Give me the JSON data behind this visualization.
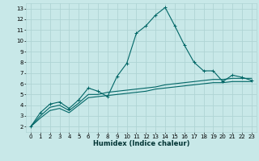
{
  "xlabel": "Humidex (Indice chaleur)",
  "ylabel": "",
  "background_color": "#c8e8e8",
  "grid_color": "#afd4d4",
  "line_color": "#006666",
  "xlim": [
    -0.5,
    23.5
  ],
  "ylim": [
    1.5,
    13.5
  ],
  "xticks": [
    0,
    1,
    2,
    3,
    4,
    5,
    6,
    7,
    8,
    9,
    10,
    11,
    12,
    13,
    14,
    15,
    16,
    17,
    18,
    19,
    20,
    21,
    22,
    23
  ],
  "yticks": [
    2,
    3,
    4,
    5,
    6,
    7,
    8,
    9,
    10,
    11,
    12,
    13
  ],
  "series1_x": [
    0,
    1,
    2,
    3,
    4,
    5,
    6,
    7,
    8,
    9,
    10,
    11,
    12,
    13,
    14,
    15,
    16,
    17,
    18,
    19,
    20,
    21,
    22,
    23
  ],
  "series1_y": [
    2.0,
    3.3,
    4.1,
    4.3,
    3.7,
    4.5,
    5.6,
    5.3,
    4.8,
    6.7,
    7.9,
    10.7,
    11.4,
    12.4,
    13.1,
    11.4,
    9.6,
    8.0,
    7.2,
    7.2,
    6.2,
    6.8,
    6.6,
    6.3
  ],
  "series2_x": [
    0,
    1,
    2,
    3,
    4,
    5,
    6,
    7,
    8,
    9,
    10,
    11,
    12,
    13,
    14,
    15,
    16,
    17,
    18,
    19,
    20,
    21,
    22,
    23
  ],
  "series2_y": [
    2.0,
    3.0,
    3.8,
    4.0,
    3.5,
    4.2,
    5.0,
    5.0,
    5.2,
    5.3,
    5.4,
    5.5,
    5.6,
    5.7,
    5.9,
    6.0,
    6.1,
    6.2,
    6.3,
    6.4,
    6.4,
    6.5,
    6.5,
    6.5
  ],
  "series3_x": [
    0,
    1,
    2,
    3,
    4,
    5,
    6,
    7,
    8,
    9,
    10,
    11,
    12,
    13,
    14,
    15,
    16,
    17,
    18,
    19,
    20,
    21,
    22,
    23
  ],
  "series3_y": [
    2.0,
    2.8,
    3.5,
    3.7,
    3.3,
    4.0,
    4.7,
    4.8,
    4.9,
    5.0,
    5.1,
    5.2,
    5.3,
    5.5,
    5.6,
    5.7,
    5.8,
    5.9,
    6.0,
    6.1,
    6.1,
    6.2,
    6.2,
    6.2
  ],
  "tick_fontsize": 5.0,
  "xlabel_fontsize": 6.0
}
